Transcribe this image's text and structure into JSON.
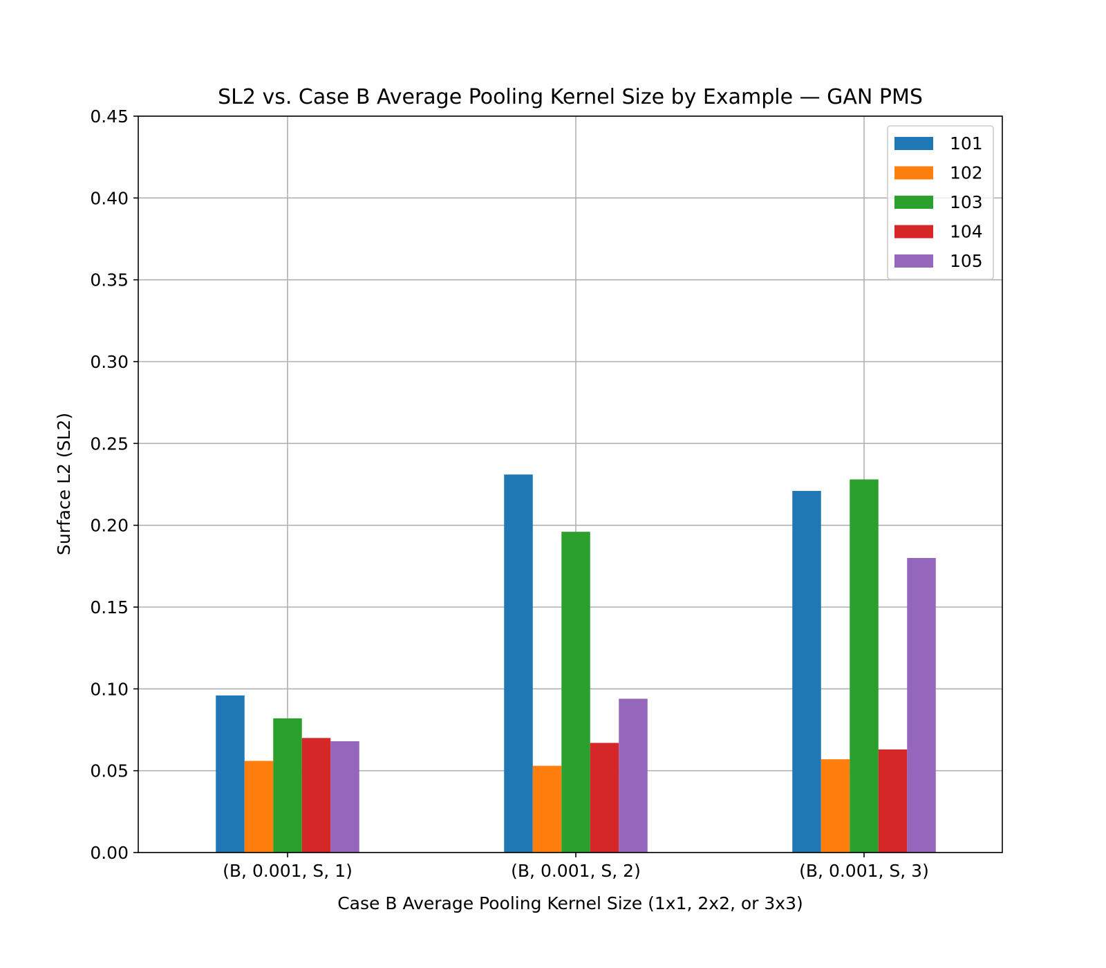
{
  "chart_data": {
    "type": "bar",
    "title": "SL2 vs. Case B Average Pooling Kernel Size by Example — GAN PMS",
    "xlabel": "Case B Average Pooling Kernel Size (1x1, 2x2, or 3x3)",
    "ylabel": "Surface L2 (SL2)",
    "categories": [
      "(B, 0.001, S, 1)",
      "(B, 0.001, S, 2)",
      "(B, 0.001, S, 3)"
    ],
    "ylim": [
      0,
      0.45
    ],
    "yticks": [
      "0.00",
      "0.05",
      "0.10",
      "0.15",
      "0.20",
      "0.25",
      "0.30",
      "0.35",
      "0.40",
      "0.45"
    ],
    "grid": true,
    "legend_position": "top-right",
    "series": [
      {
        "name": "101",
        "color": "#1f77b4",
        "values": [
          0.096,
          0.231,
          0.221
        ]
      },
      {
        "name": "102",
        "color": "#ff7f0e",
        "values": [
          0.056,
          0.053,
          0.057
        ]
      },
      {
        "name": "103",
        "color": "#2ca02c",
        "values": [
          0.082,
          0.196,
          0.228
        ]
      },
      {
        "name": "104",
        "color": "#d62728",
        "values": [
          0.07,
          0.067,
          0.063
        ]
      },
      {
        "name": "105",
        "color": "#9467bd",
        "values": [
          0.068,
          0.094,
          0.18
        ]
      }
    ]
  }
}
